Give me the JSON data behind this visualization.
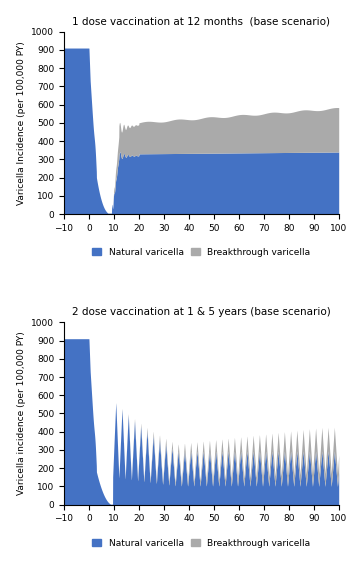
{
  "title1": "1 dose vaccination at 12 months  (base scenario)",
  "title2": "2 dose vaccination at 1 & 5 years (base scenario)",
  "ylabel": "Varicella Incidence (per 100,000 PY)",
  "ylabel2": "Varicella incidence (per 100,000 PY)",
  "xlim": [
    -10,
    100
  ],
  "ylim": [
    0,
    1000
  ],
  "yticks": [
    0,
    100,
    200,
    300,
    400,
    500,
    600,
    700,
    800,
    900,
    1000
  ],
  "xticks": [
    -10,
    0,
    10,
    20,
    30,
    40,
    50,
    60,
    70,
    80,
    90,
    100
  ],
  "color_natural": "#4472C4",
  "color_breakthrough": "#AAAAAA",
  "legend_natural": "Natural varicella",
  "legend_breakthrough": "Breakthrough varicella",
  "bg_color": "#FFFFFF",
  "figsize": [
    3.64,
    5.73
  ],
  "dpi": 100
}
